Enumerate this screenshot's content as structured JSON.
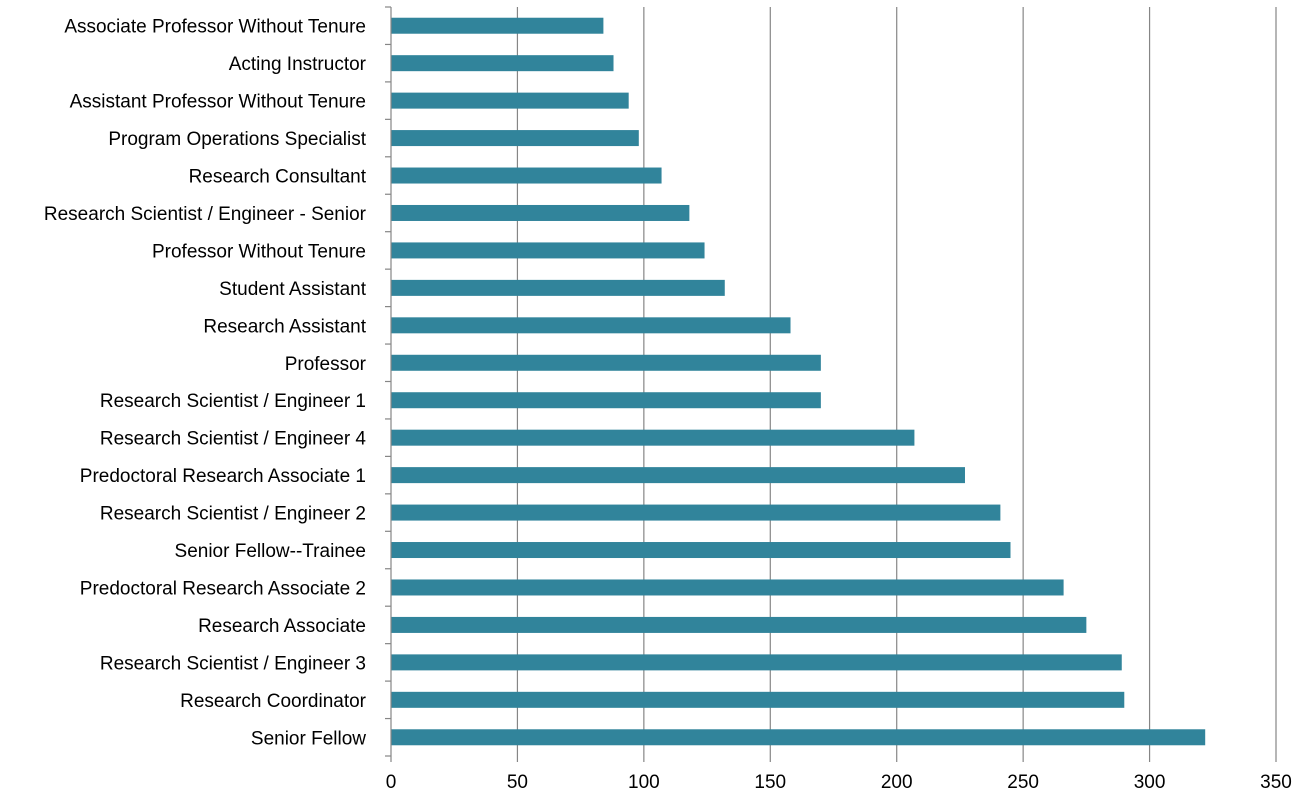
{
  "chart_data": {
    "type": "bar",
    "orientation": "horizontal",
    "categories": [
      "Associate Professor Without Tenure",
      "Acting Instructor",
      "Assistant Professor Without Tenure",
      "Program Operations Specialist",
      "Research Consultant",
      "Research Scientist / Engineer - Senior",
      "Professor Without Tenure",
      "Student Assistant",
      "Research Assistant",
      "Professor",
      "Research Scientist / Engineer 1",
      "Research Scientist / Engineer 4",
      "Predoctoral Research Associate 1",
      "Research Scientist  / Engineer 2",
      "Senior Fellow--Trainee",
      "Predoctoral Research Associate 2",
      "Research Associate",
      "Research Scientist / Engineer 3",
      "Research Coordinator",
      "Senior Fellow"
    ],
    "values": [
      84,
      88,
      94,
      98,
      107,
      118,
      124,
      132,
      158,
      170,
      170,
      207,
      227,
      241,
      245,
      266,
      275,
      289,
      290,
      322
    ],
    "xlim": [
      0,
      350
    ],
    "xticks": [
      "0",
      "50",
      "100",
      "150",
      "200",
      "250",
      "300",
      "350"
    ],
    "grid": "vertical",
    "legend": "none",
    "title": "",
    "xlabel": "",
    "ylabel": "",
    "colors": {
      "bar": "#31849b",
      "grid": "#868686",
      "axis": "#868686"
    }
  }
}
